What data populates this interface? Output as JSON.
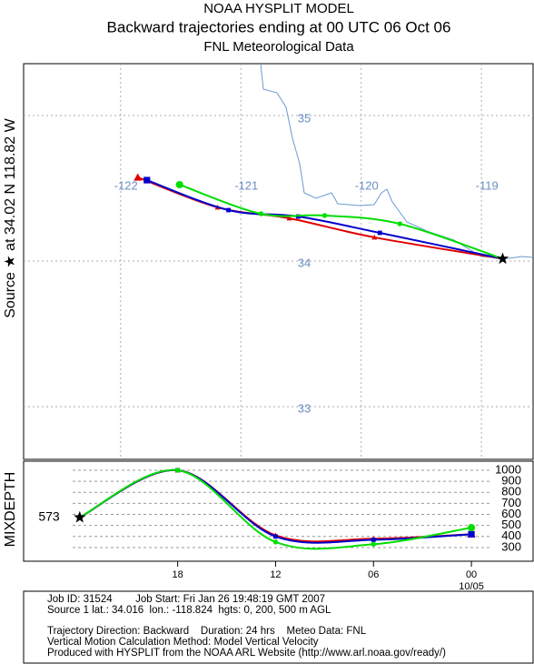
{
  "header": {
    "title": "NOAA HYSPLIT MODEL",
    "subtitle": "Backward trajectories ending at 00 UTC 06 Oct 06",
    "data_source": "FNL  Meteorological Data"
  },
  "map": {
    "type": "trajectory",
    "side_label": "Source ★ at  34.02 N  118.82 W",
    "lonlim": [
      -122.806,
      -118.571
    ],
    "latlim": [
      32.638,
      35.356
    ],
    "lonticks": [
      -122,
      -121,
      -120,
      -119
    ],
    "latticks": [
      35,
      34,
      33
    ],
    "source": {
      "lat": 34.016,
      "lon": -118.824
    },
    "trajectories": [
      {
        "name": "0 m",
        "color": "#e00000",
        "marker": "triangle",
        "lon": [
          -119.89,
          -120.598,
          -121.194,
          -121.857
        ],
        "lat": [
          34.163,
          34.294,
          34.369,
          34.575
        ]
      },
      {
        "name": "200 m",
        "color": "#0000cc",
        "marker": "square",
        "lon": [
          -119.845,
          -120.523,
          -121.103,
          -121.781
        ],
        "lat": [
          34.194,
          34.306,
          34.35,
          34.556
        ]
      },
      {
        "name": "500 m",
        "color": "#00dd00",
        "marker": "circle",
        "lon": [
          -119.679,
          -120.304,
          -120.832,
          -121.51
        ],
        "lat": [
          34.256,
          34.313,
          34.325,
          34.525
        ]
      }
    ]
  },
  "chart_data": {
    "type": "line",
    "ylabel": "MIXDEPTH",
    "start_label": "573",
    "x": [
      0,
      6,
      12,
      18,
      24
    ],
    "xlim": [
      -3.44,
      27.78
    ],
    "xticks": [
      {
        "value": 6,
        "label": "18"
      },
      {
        "value": 12,
        "label": "12"
      },
      {
        "value": 18,
        "label": "06"
      },
      {
        "value": 24,
        "label": "00"
      }
    ],
    "date_label": "10/05",
    "ylim": [
      176,
      1082
    ],
    "yticks": [
      300,
      400,
      500,
      600,
      700,
      800,
      900,
      1000
    ],
    "grid": true,
    "series": [
      {
        "name": "0 m",
        "color": "#e00000",
        "values": [
          573,
          1000,
          410,
          380,
          420
        ]
      },
      {
        "name": "200 m",
        "color": "#0000cc",
        "values": [
          573,
          1000,
          400,
          370,
          420
        ]
      },
      {
        "name": "500 m",
        "color": "#00dd00",
        "values": [
          573,
          1000,
          350,
          330,
          480
        ]
      }
    ]
  },
  "footer": {
    "lines": [
      "Job ID: 31524        Job Start: Fri Jan 26 19:48:19 GMT 2007",
      "Source 1 lat.: 34.016  lon.: -118.824  hgts: 0, 200, 500 m AGL",
      "Trajectory Direction: Backward    Duration: 24 hrs    Meteo Data: FNL",
      "Vertical Motion Calculation Method: Model Vertical Velocity",
      "Produced with HYSPLIT from the NOAA ARL Website (http://www.arl.noaa.gov/ready/)"
    ]
  }
}
